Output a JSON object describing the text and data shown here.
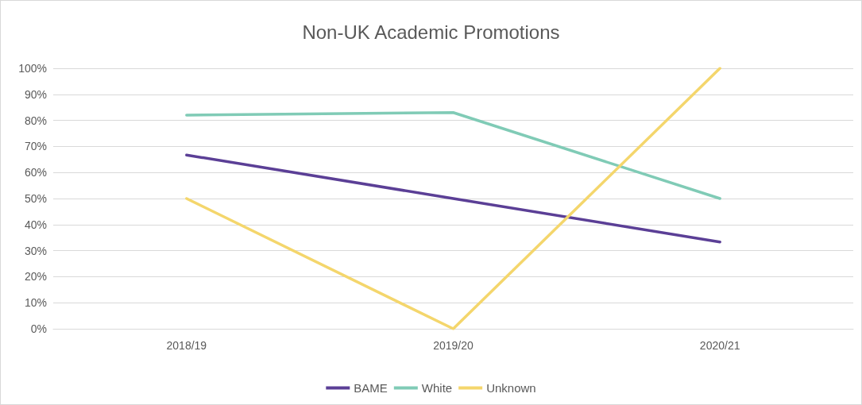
{
  "chart_data": {
    "type": "line",
    "title": "Non-UK Academic Promotions",
    "categories": [
      "2018/19",
      "2019/20",
      "2020/21"
    ],
    "series": [
      {
        "name": "BAME",
        "color": "#5b3f96",
        "values": [
          66.7,
          50,
          33.3
        ]
      },
      {
        "name": "White",
        "color": "#80cbb6",
        "values": [
          82,
          83,
          50
        ]
      },
      {
        "name": "Unknown",
        "color": "#f4d66c",
        "values": [
          50,
          0,
          100
        ]
      }
    ],
    "ylim": [
      0,
      100
    ],
    "yticks": [
      {
        "value": 0,
        "label": "0%"
      },
      {
        "value": 10,
        "label": "10%"
      },
      {
        "value": 20,
        "label": "20%"
      },
      {
        "value": 30,
        "label": "30%"
      },
      {
        "value": 40,
        "label": "40%"
      },
      {
        "value": 50,
        "label": "50%"
      },
      {
        "value": 60,
        "label": "60%"
      },
      {
        "value": 70,
        "label": "70%"
      },
      {
        "value": 80,
        "label": "80%"
      },
      {
        "value": 90,
        "label": "90%"
      },
      {
        "value": 100,
        "label": "100%"
      }
    ],
    "grid": "y",
    "legend": "bottom",
    "marker": "none",
    "line_style": "solid"
  }
}
